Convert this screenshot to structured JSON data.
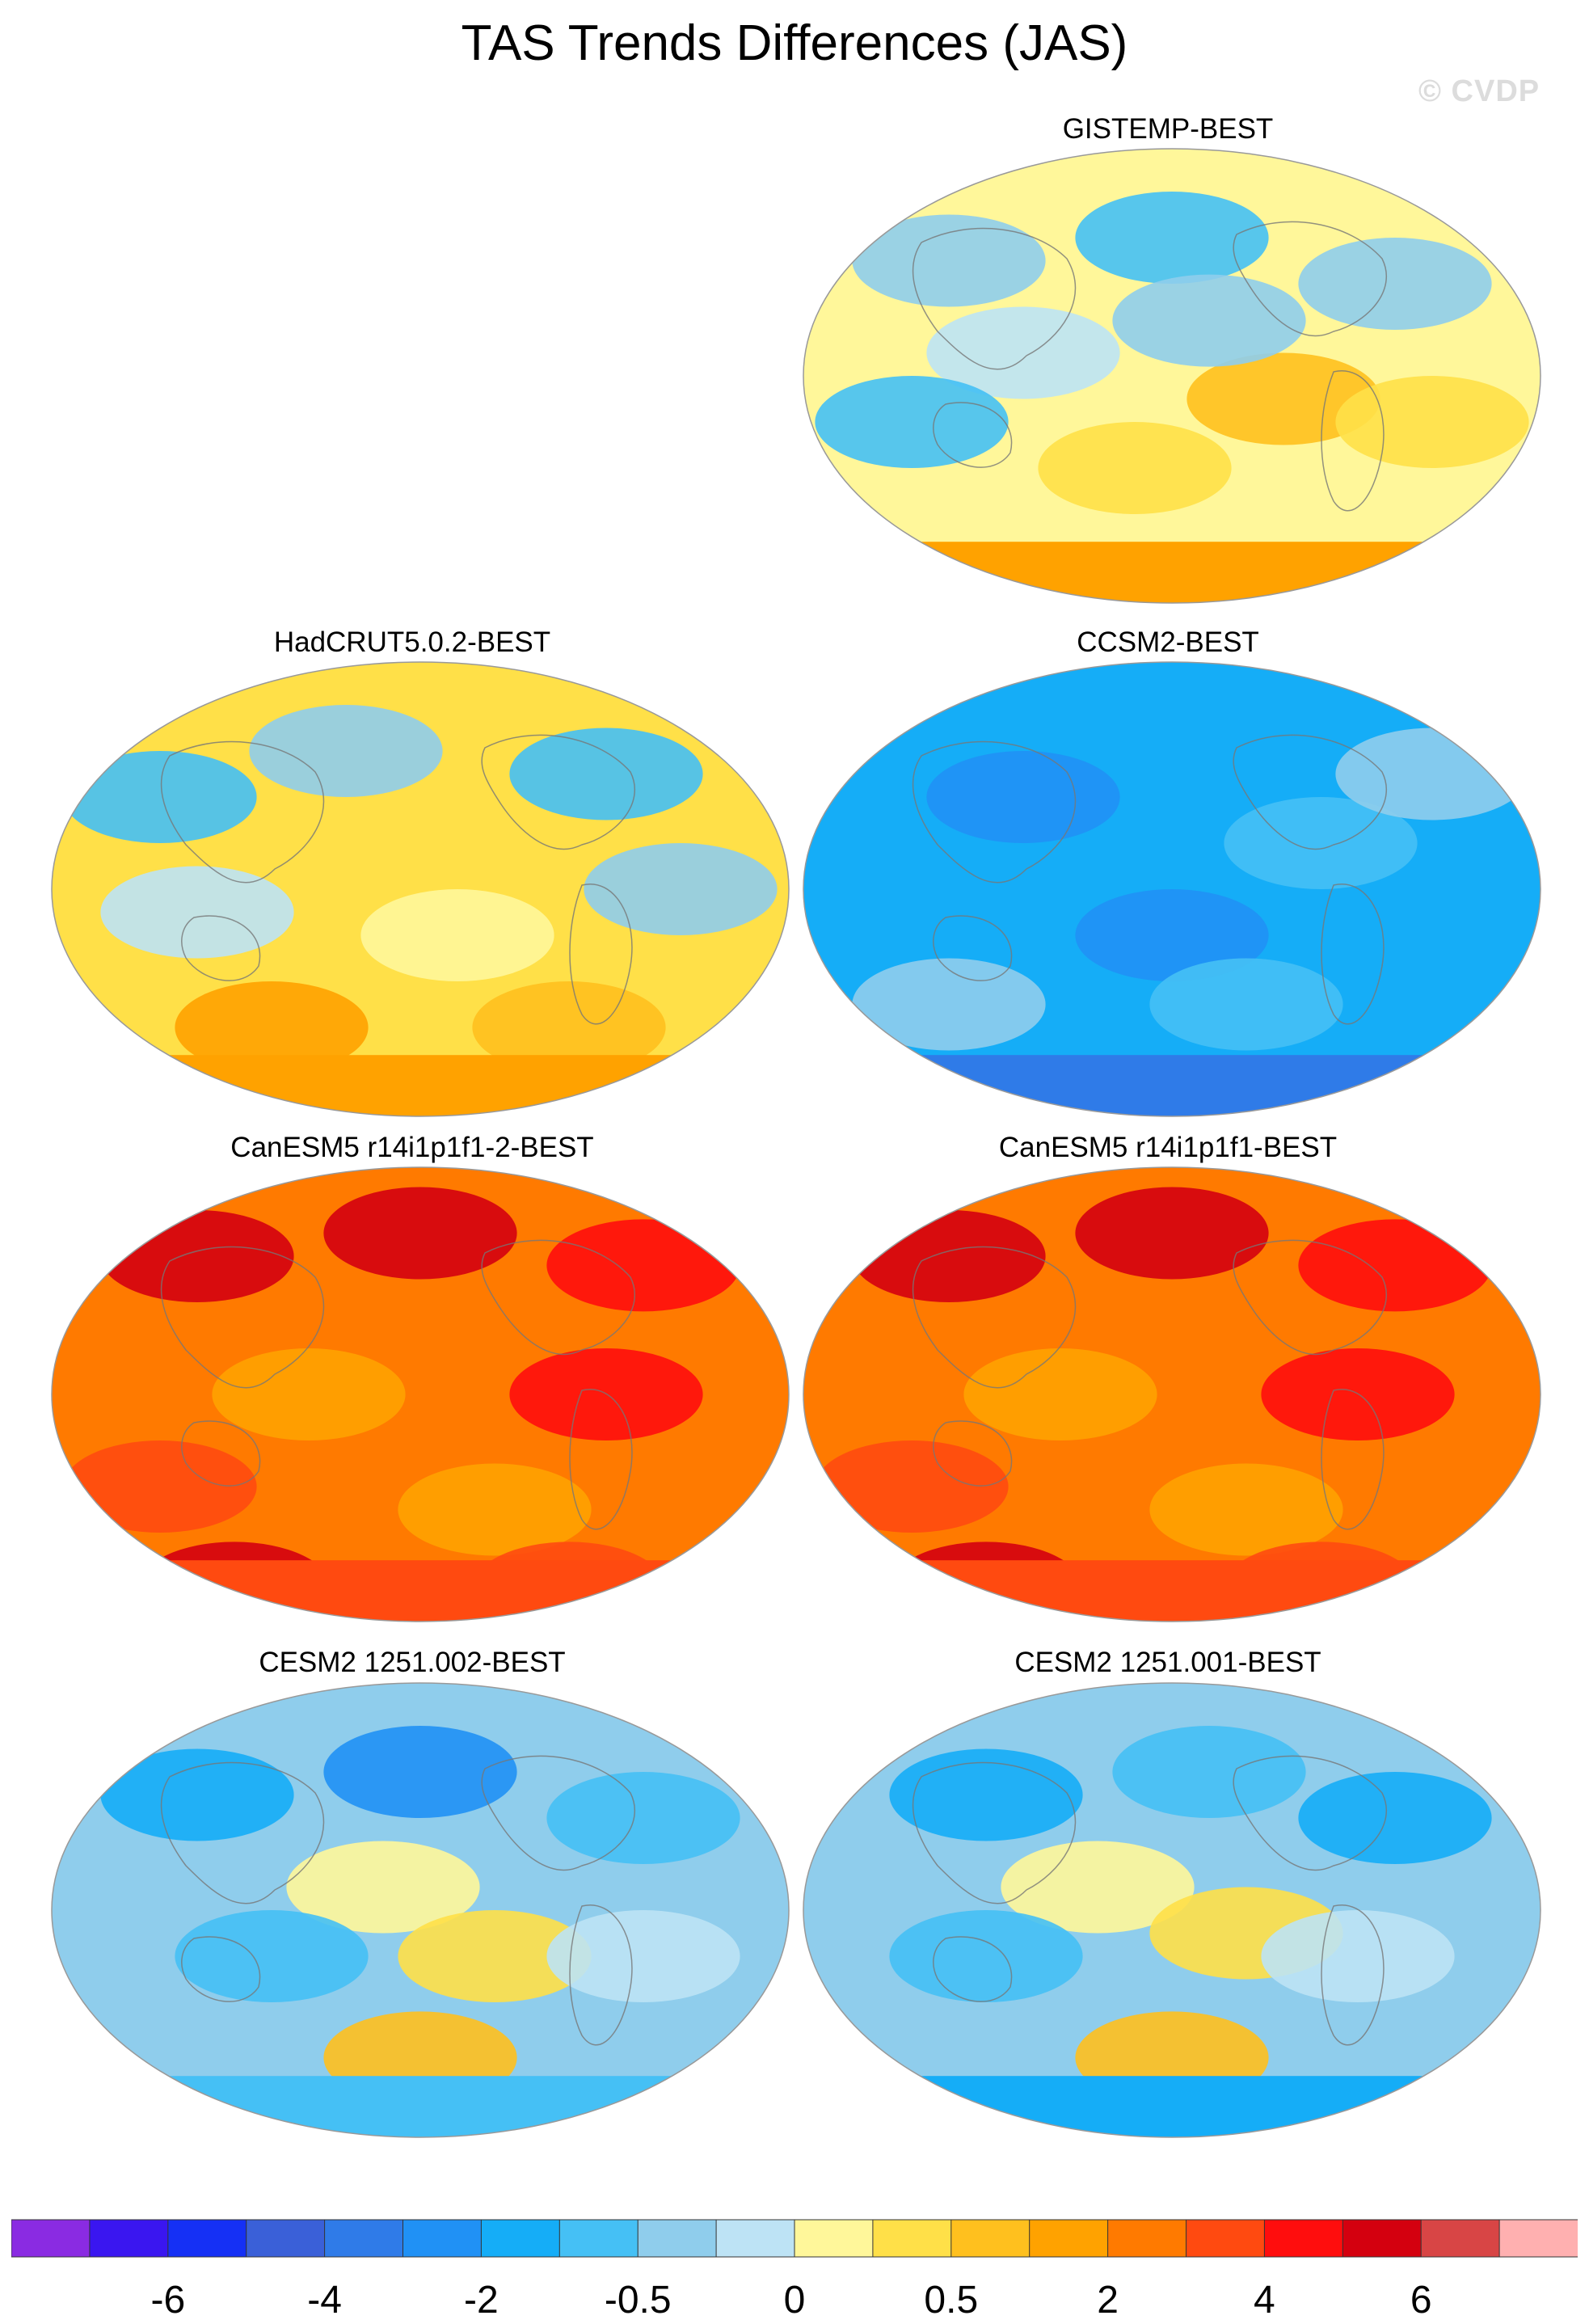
{
  "figure": {
    "title": "TAS Trends Differences (JAS)",
    "watermark": "© CVDP"
  },
  "panels": [
    {
      "id": "gistemp",
      "title": "GISTEMP-BEST",
      "scheme": "mixed_warm"
    },
    {
      "id": "hadcrut",
      "title": "HadCRUT5.0.2-BEST",
      "scheme": "mixed_warm2"
    },
    {
      "id": "ccsm2",
      "title": "CCSM2-BEST",
      "scheme": "cool"
    },
    {
      "id": "canesm5_2",
      "title": "CanESM5 r14i1p1f1-2-BEST",
      "scheme": "hot"
    },
    {
      "id": "canesm5_1",
      "title": "CanESM5 r14i1p1f1-BEST",
      "scheme": "hot"
    },
    {
      "id": "cesm2_002",
      "title": "CESM2 1251.002-BEST",
      "scheme": "mixed_cool"
    },
    {
      "id": "cesm2_001",
      "title": "CESM2 1251.001-BEST",
      "scheme": "mixed_cool2"
    }
  ],
  "colorbar": {
    "colors": [
      "#8a2be2",
      "#3a16f0",
      "#1530f5",
      "#3a60d8",
      "#2f7be8",
      "#2091f5",
      "#15adf7",
      "#45c0f5",
      "#8fcdec",
      "#bde3f5",
      "#fff79a",
      "#ffe048",
      "#ffc01e",
      "#ffa200",
      "#ff7a00",
      "#ff4a10",
      "#ff0d0d",
      "#d4000f",
      "#d84545",
      "#ffb0b0"
    ],
    "tick_labels": [
      "-6",
      "-4",
      "-2",
      "-0.5",
      "0",
      "0.5",
      "2",
      "4",
      "6"
    ]
  }
}
